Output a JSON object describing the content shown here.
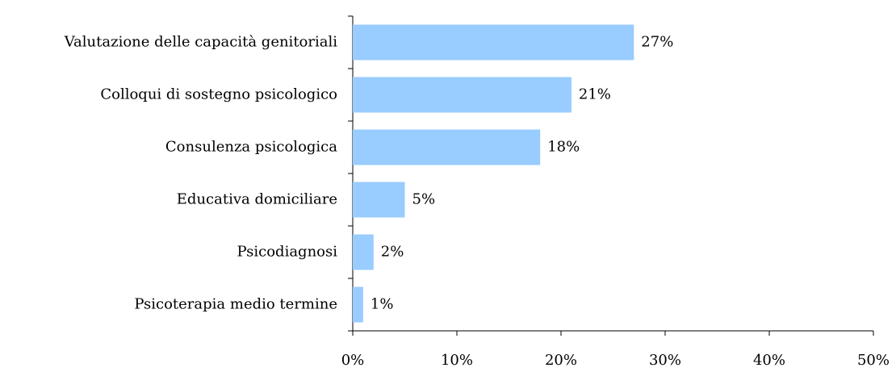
{
  "chart_data": {
    "type": "bar",
    "orientation": "horizontal",
    "categories": [
      "Valutazione delle capacità genitoriali",
      "Colloqui di sostegno psicologico",
      "Consulenza psicologica",
      "Educativa domiciliare",
      "Psicodiagnosi",
      "Psicoterapia medio termine"
    ],
    "values": [
      27,
      21,
      18,
      5,
      2,
      1
    ],
    "value_labels": [
      "27%",
      "21%",
      "18%",
      "5%",
      "2%",
      "1%"
    ],
    "color": "#99ccff",
    "xlim": [
      0,
      50
    ],
    "xticks": [
      {
        "value": 0,
        "label": "0%"
      },
      {
        "value": 10,
        "label": "10%"
      },
      {
        "value": 20,
        "label": "20%"
      },
      {
        "value": 30,
        "label": "30%"
      },
      {
        "value": 40,
        "label": "40%"
      },
      {
        "value": 50,
        "label": "50%"
      }
    ]
  }
}
